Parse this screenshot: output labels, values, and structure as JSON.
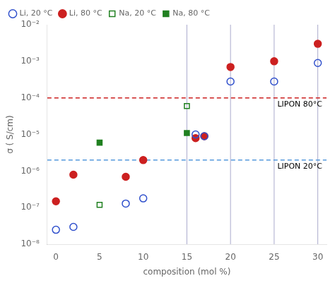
{
  "chart_data": {
    "type": "scatter",
    "xlabel": "composition (mol %)",
    "ylabel": "σ ( S/cm)",
    "log": "y",
    "grid": false,
    "legend": "upper left",
    "xlim": [
      -1,
      31
    ],
    "xticks": [
      0,
      5,
      10,
      15,
      20,
      25,
      30
    ],
    "ylim": [
      1e-08,
      0.01
    ],
    "yticks": [
      {
        "value": 1e-08,
        "label": "10⁻⁸"
      },
      {
        "value": 1e-07,
        "label": "10⁻⁷"
      },
      {
        "value": 1e-06,
        "label": "10⁻⁶"
      },
      {
        "value": 1e-05,
        "label": "10⁻⁵"
      },
      {
        "value": 0.0001,
        "label": "10⁻⁴"
      },
      {
        "value": 0.001,
        "label": "10⁻³"
      },
      {
        "value": 0.01,
        "label": "10⁻²"
      }
    ],
    "series": [
      {
        "name": "Li, 20 °C",
        "color": "#3050cc",
        "marker": "open_circle",
        "x": [
          0,
          2,
          8,
          10,
          16,
          17,
          20,
          25,
          30
        ],
        "values": [
          2.5e-08,
          3e-08,
          1.3e-07,
          1.8e-07,
          1e-05,
          9e-06,
          0.00028,
          0.00028,
          0.0009
        ]
      },
      {
        "name": "Li, 80 °C",
        "color": "#cc2020",
        "marker": "circle",
        "x": [
          0,
          2,
          8,
          10,
          16,
          17,
          20,
          25,
          30
        ],
        "values": [
          1.5e-07,
          8e-07,
          7e-07,
          2e-06,
          8e-06,
          9e-06,
          0.0007,
          0.001,
          0.003
        ]
      },
      {
        "name": "Na, 20 °C",
        "color": "#208020",
        "marker": "open_square",
        "x": [
          5,
          15
        ],
        "values": [
          1.2e-07,
          6e-05
        ]
      },
      {
        "name": "Na, 80 °C",
        "color": "#208020",
        "marker": "square",
        "x": [
          5,
          15
        ],
        "values": [
          6e-06,
          1.1e-05
        ]
      }
    ],
    "annotations": [
      {
        "y": 0.0001,
        "text": "LIPON 80°C",
        "color": "#cc2020",
        "line_style": "dashed"
      },
      {
        "y": 2e-06,
        "text": "LIPON 20°C",
        "color": "#5599dd",
        "line_style": "dashed"
      }
    ],
    "vlines": {
      "x": [
        15,
        20,
        25,
        30
      ],
      "color": "#aaaacc"
    }
  }
}
